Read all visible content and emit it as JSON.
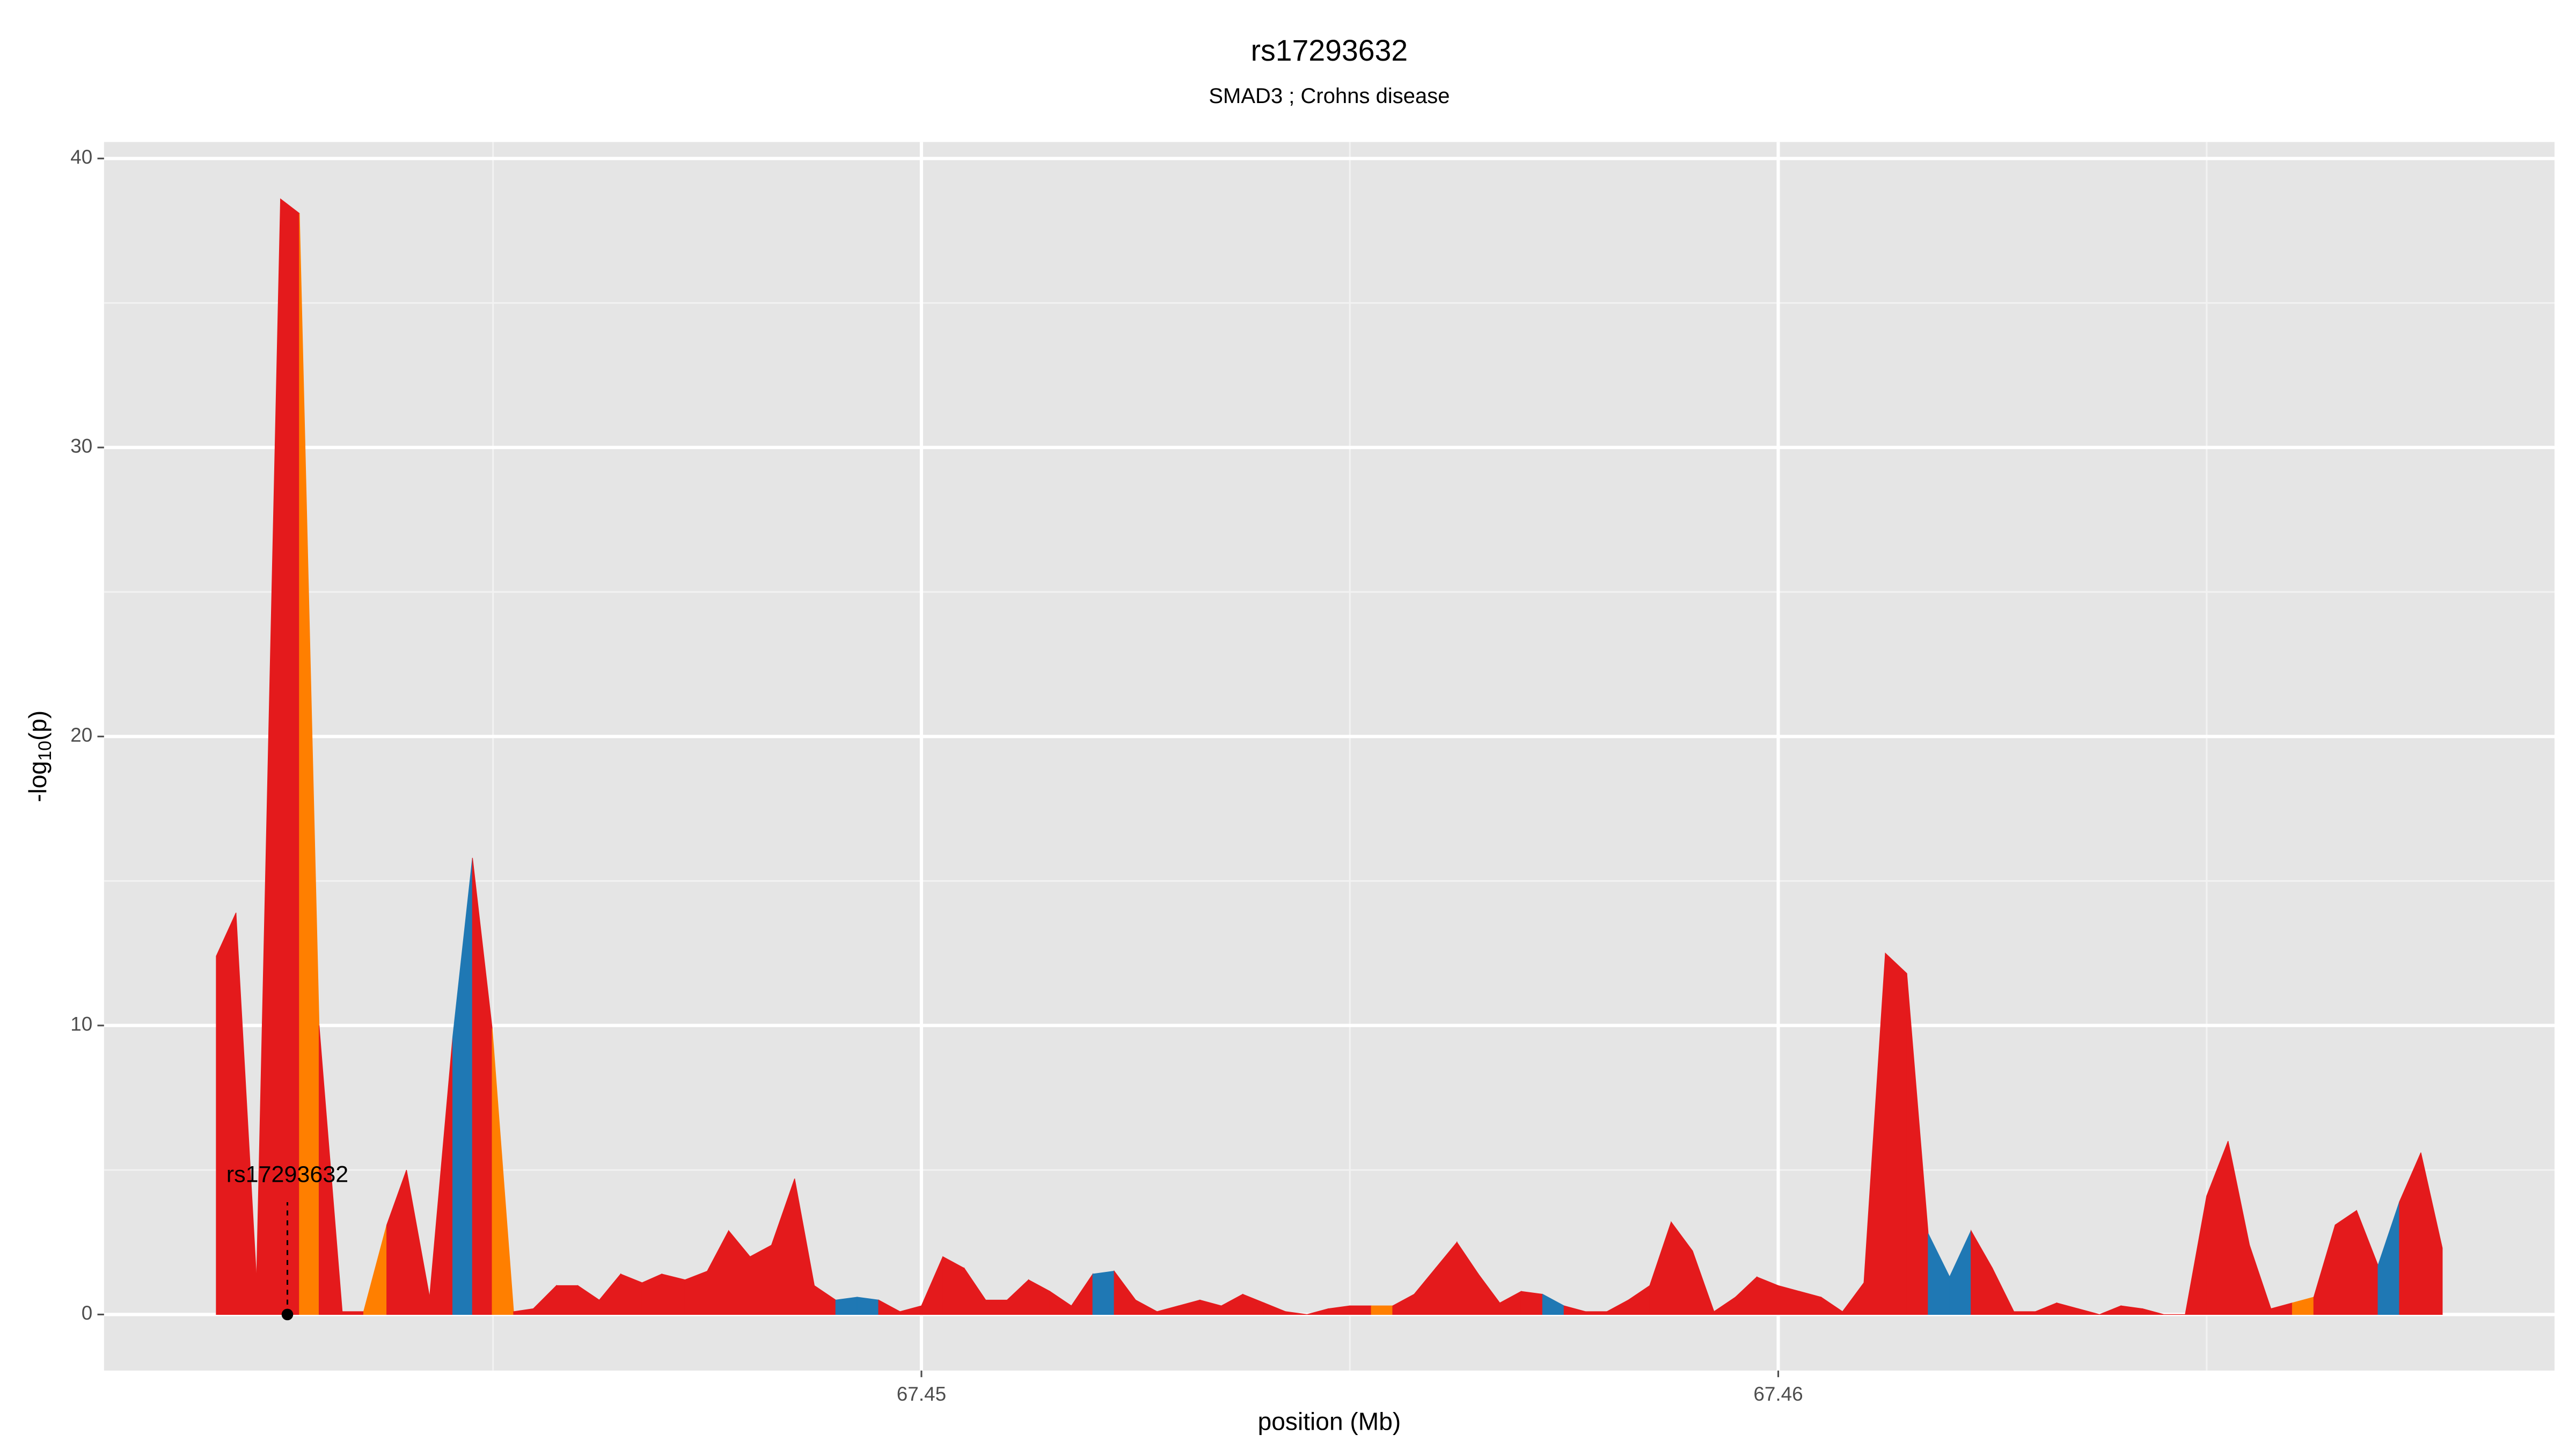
{
  "chart_data": {
    "type": "area",
    "title": "rs17293632",
    "subtitle": "SMAD3 ; Crohns disease",
    "x_label": "position (Mb)",
    "y_label": [
      "-log",
      "10",
      "(p)"
    ],
    "xlim": [
      67.44046,
      67.46906
    ],
    "ylim": [
      -1.94,
      40.57
    ],
    "xticks": [
      67.45,
      67.46
    ],
    "yticks": [
      0,
      10,
      20,
      30,
      40
    ],
    "x_minor_ticks": [
      67.445,
      67.455,
      67.465
    ],
    "y_minor_ticks": [
      5,
      15,
      25,
      35
    ],
    "grid": true,
    "x": [
      67.44177,
      67.442,
      67.44224,
      67.44252,
      67.44274,
      67.44297,
      67.44324,
      67.44349,
      67.44376,
      67.44399,
      67.44426,
      67.44453,
      67.44476,
      67.44499,
      67.44524,
      67.44547,
      67.44574,
      67.44599,
      67.44624,
      67.44649,
      67.44674,
      67.44697,
      67.44724,
      67.4475,
      67.44775,
      67.448,
      67.44825,
      67.44852,
      67.44875,
      67.449,
      67.44925,
      67.4495,
      67.44975,
      67.45,
      67.45025,
      67.4505,
      67.45075,
      67.451,
      67.45125,
      67.4515,
      67.45175,
      67.452,
      67.45225,
      67.4525,
      67.45275,
      67.453,
      67.45325,
      67.4535,
      67.45375,
      67.454,
      67.45425,
      67.4545,
      67.45475,
      67.455,
      67.45525,
      67.4555,
      67.45575,
      67.456,
      67.45625,
      67.4565,
      67.45675,
      67.457,
      67.45725,
      67.4575,
      67.45775,
      67.458,
      67.45825,
      67.4585,
      67.45875,
      67.459,
      67.45925,
      67.4595,
      67.45975,
      67.46,
      67.46025,
      67.4605,
      67.46075,
      67.461,
      67.46125,
      67.4615,
      67.46175,
      67.462,
      67.46225,
      67.4625,
      67.46275,
      67.463,
      67.46325,
      67.4635,
      67.46375,
      67.464,
      67.46425,
      67.4645,
      67.46475,
      67.465,
      67.46525,
      67.4655,
      67.46575,
      67.466,
      67.46625,
      67.4665,
      67.46675,
      67.467,
      67.46725,
      67.4675,
      67.46775
    ],
    "values": [
      12.4,
      13.9,
      1.2,
      38.6,
      38.1,
      10,
      0.1,
      0.1,
      3.1,
      5.0,
      0.6,
      9.6,
      15.8,
      9.9,
      0.1,
      0.2,
      1.0,
      1.0,
      0.5,
      1.4,
      1.1,
      1.4,
      1.2,
      1.5,
      2.9,
      2.0,
      2.4,
      4.7,
      1.0,
      0.5,
      0.6,
      0.5,
      0.1,
      0.3,
      2.0,
      1.6,
      0.5,
      0.5,
      1.2,
      0.8,
      0.3,
      1.4,
      1.5,
      0.5,
      0.1,
      0.3,
      0.5,
      0.3,
      0.7,
      0.4,
      0.1,
      0.0,
      0.2,
      0.3,
      0.3,
      0.3,
      0.7,
      1.6,
      2.5,
      1.4,
      0.4,
      0.8,
      0.7,
      0.3,
      0.1,
      0.1,
      0.5,
      1.0,
      3.2,
      2.2,
      0.1,
      0.6,
      1.3,
      1.0,
      0.8,
      0.6,
      0.1,
      1.1,
      12.5,
      11.8,
      2.8,
      1.3,
      2.9,
      1.6,
      0.1,
      0.1,
      0.4,
      0.2,
      0.0,
      0.3,
      0.2,
      0.0,
      0.0,
      4.1,
      6.0,
      2.4,
      0.2,
      0.4,
      0.6,
      3.1,
      3.6,
      1.7,
      3.9,
      5.6,
      2.3
    ],
    "colors": [
      "#e41a1c",
      "#e41a1c",
      "#e41a1c",
      "#e41a1c",
      "#ff7f00",
      "#e41a1c",
      "#e41a1c",
      "#ff7f00",
      "#e41a1c",
      "#e41a1c",
      "#e41a1c",
      "#1f78b4",
      "#e41a1c",
      "#ff7f00",
      "#e41a1c",
      "#e41a1c",
      "#e41a1c",
      "#e41a1c",
      "#e41a1c",
      "#e41a1c",
      "#e41a1c",
      "#e41a1c",
      "#e41a1c",
      "#e41a1c",
      "#e41a1c",
      "#e41a1c",
      "#e41a1c",
      "#e41a1c",
      "#e41a1c",
      "#1f78b4",
      "#1f78b4",
      "#e41a1c",
      "#e41a1c",
      "#e41a1c",
      "#e41a1c",
      "#e41a1c",
      "#e41a1c",
      "#e41a1c",
      "#e41a1c",
      "#e41a1c",
      "#e41a1c",
      "#1f78b4",
      "#e41a1c",
      "#e41a1c",
      "#e41a1c",
      "#e41a1c",
      "#e41a1c",
      "#e41a1c",
      "#e41a1c",
      "#e41a1c",
      "#e41a1c",
      "#e41a1c",
      "#e41a1c",
      "#e41a1c",
      "#ff7f00",
      "#e41a1c",
      "#e41a1c",
      "#e41a1c",
      "#e41a1c",
      "#e41a1c",
      "#e41a1c",
      "#e41a1c",
      "#1f78b4",
      "#e41a1c",
      "#e41a1c",
      "#e41a1c",
      "#e41a1c",
      "#e41a1c",
      "#e41a1c",
      "#e41a1c",
      "#e41a1c",
      "#e41a1c",
      "#e41a1c",
      "#e41a1c",
      "#e41a1c",
      "#e41a1c",
      "#e41a1c",
      "#e41a1c",
      "#e41a1c",
      "#e41a1c",
      "#1f78b4",
      "#1f78b4",
      "#e41a1c",
      "#e41a1c",
      "#e41a1c",
      "#e41a1c",
      "#e41a1c",
      "#e41a1c",
      "#e41a1c",
      "#e41a1c",
      "#e41a1c",
      "#e41a1c",
      "#e41a1c",
      "#e41a1c",
      "#e41a1c",
      "#e41a1c",
      "#e41a1c",
      "#ff7f00",
      "#e41a1c",
      "#e41a1c",
      "#e41a1c",
      "#1f78b4",
      "#e41a1c",
      "#e41a1c",
      "#e41a1c"
    ],
    "annotation": {
      "label": "rs17293632",
      "x": 67.4426,
      "y": 0
    }
  }
}
